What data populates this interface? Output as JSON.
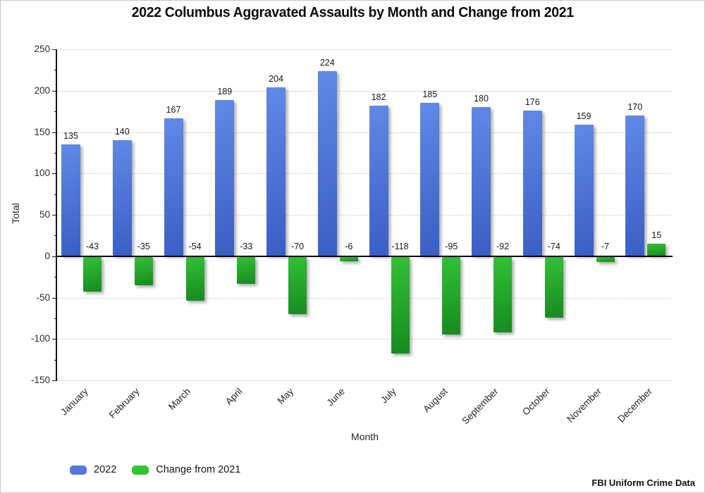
{
  "page": {
    "title": "2022 Columbus Aggravated Assaults by Month and Change from 2021",
    "source_note": "FBI Uniform Crime Data"
  },
  "chart_data": {
    "type": "bar",
    "title": "2022 Columbus Aggravated Assaults by Month and Change from 2021",
    "xlabel": "Month",
    "ylabel": "Total",
    "categories": [
      "January",
      "February",
      "March",
      "April",
      "May",
      "June",
      "July",
      "August",
      "September",
      "October",
      "November",
      "December"
    ],
    "series": [
      {
        "name": "2022",
        "values": [
          135,
          140,
          167,
          189,
          204,
          224,
          182,
          185,
          180,
          176,
          159,
          170
        ],
        "color_top": "#6189e6",
        "color_bottom": "#3a5ec4",
        "legend_color": "#5277e3"
      },
      {
        "name": "Change from 2021",
        "values": [
          -43,
          -35,
          -54,
          -33,
          -70,
          -6,
          -118,
          -95,
          -92,
          -74,
          -7,
          15
        ],
        "color_top": "#33c036",
        "color_bottom": "#178a20",
        "legend_color": "#2ec52e"
      }
    ],
    "ylim": [
      -150,
      250
    ],
    "yticks": [
      250,
      200,
      150,
      100,
      50,
      0,
      -50,
      -100,
      -150
    ],
    "ytick_minor_step": 25,
    "grid": true,
    "grid_style": "dotted",
    "legend_position": "bottom-left",
    "data_labels": true
  },
  "colors": {
    "grid": "#c6c6c6",
    "axis": "#161616",
    "label": "#161616",
    "background": "#ffffff"
  }
}
